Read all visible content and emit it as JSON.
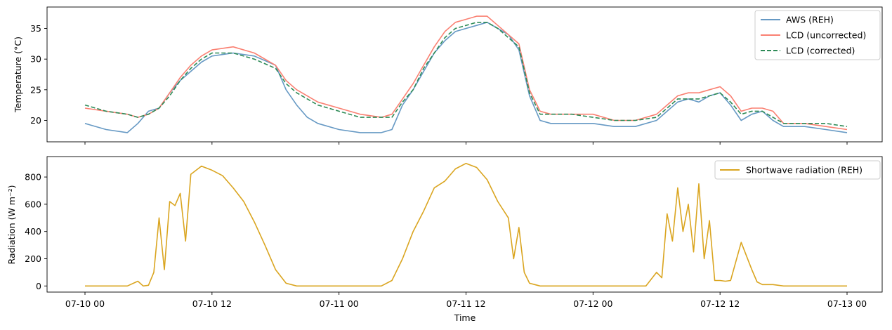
{
  "chart_data": [
    {
      "type": "line",
      "xlabel": "",
      "ylabel": "Temperature (°C)",
      "xlim": [
        "07-10 00",
        "07-13 00"
      ],
      "ylim": [
        16.5,
        38.5
      ],
      "yticks": [
        20,
        25,
        30,
        35
      ],
      "legend": "top-right",
      "series": [
        {
          "name": "AWS (REH)",
          "color": "#6699c4",
          "style": "solid",
          "x": [
            "07-10 00",
            "07-10 02",
            "07-10 04",
            "07-10 05",
            "07-10 06",
            "07-10 07",
            "07-10 08",
            "07-10 09",
            "07-10 10",
            "07-10 11",
            "07-10 12",
            "07-10 14",
            "07-10 16",
            "07-10 18",
            "07-10 19",
            "07-10 20",
            "07-10 21",
            "07-10 22",
            "07-11 00",
            "07-11 02",
            "07-11 04",
            "07-11 05",
            "07-11 06",
            "07-11 07",
            "07-11 08",
            "07-11 09",
            "07-11 10",
            "07-11 11",
            "07-11 12",
            "07-11 13",
            "07-11 14",
            "07-11 15",
            "07-11 16",
            "07-11 17",
            "07-11 18",
            "07-11 19",
            "07-11 20",
            "07-11 22",
            "07-12 00",
            "07-12 02",
            "07-12 04",
            "07-12 06",
            "07-12 07",
            "07-12 08",
            "07-12 09",
            "07-12 10",
            "07-12 11",
            "07-12 12",
            "07-12 13",
            "07-12 14",
            "07-12 15",
            "07-12 16",
            "07-12 17",
            "07-12 18",
            "07-12 20",
            "07-12 22",
            "07-13 00"
          ],
          "y": [
            19.5,
            18.5,
            18.0,
            19.5,
            21.5,
            22.0,
            24.5,
            26.5,
            28.0,
            29.5,
            30.5,
            31.0,
            30.5,
            29.0,
            25.0,
            22.5,
            20.5,
            19.5,
            18.5,
            18.0,
            18.0,
            18.5,
            22.5,
            25.0,
            28.0,
            31.0,
            33.0,
            34.5,
            35.0,
            35.5,
            36.0,
            35.0,
            34.0,
            31.5,
            24.0,
            20.0,
            19.5,
            19.5,
            19.5,
            19.0,
            19.0,
            20.0,
            21.5,
            23.0,
            23.5,
            23.0,
            24.0,
            24.5,
            22.5,
            20.0,
            21.0,
            21.5,
            20.0,
            19.0,
            19.0,
            18.5,
            18.0
          ]
        },
        {
          "name": "LCD (uncorrected)",
          "color": "#fa8072",
          "style": "solid",
          "x": [
            "07-10 00",
            "07-10 02",
            "07-10 04",
            "07-10 05",
            "07-10 06",
            "07-10 07",
            "07-10 08",
            "07-10 09",
            "07-10 10",
            "07-10 11",
            "07-10 12",
            "07-10 14",
            "07-10 16",
            "07-10 18",
            "07-10 19",
            "07-10 20",
            "07-10 22",
            "07-11 00",
            "07-11 02",
            "07-11 04",
            "07-11 05",
            "07-11 06",
            "07-11 07",
            "07-11 08",
            "07-11 09",
            "07-11 10",
            "07-11 11",
            "07-11 12",
            "07-11 13",
            "07-11 14",
            "07-11 15",
            "07-11 16",
            "07-11 17",
            "07-11 18",
            "07-11 19",
            "07-11 20",
            "07-11 22",
            "07-12 00",
            "07-12 02",
            "07-12 04",
            "07-12 06",
            "07-12 07",
            "07-12 08",
            "07-12 09",
            "07-12 10",
            "07-12 11",
            "07-12 12",
            "07-12 13",
            "07-12 14",
            "07-12 15",
            "07-12 16",
            "07-12 17",
            "07-12 18",
            "07-12 20",
            "07-12 22",
            "07-13 00"
          ],
          "y": [
            22.0,
            21.5,
            21.0,
            20.5,
            21.0,
            22.0,
            24.5,
            27.0,
            29.0,
            30.5,
            31.5,
            32.0,
            31.0,
            29.0,
            26.5,
            25.0,
            23.0,
            22.0,
            21.0,
            20.5,
            21.0,
            23.5,
            26.0,
            29.0,
            32.0,
            34.5,
            36.0,
            36.5,
            37.0,
            37.0,
            35.5,
            34.0,
            32.5,
            25.0,
            21.5,
            21.0,
            21.0,
            21.0,
            20.0,
            20.0,
            21.0,
            22.5,
            24.0,
            24.5,
            24.5,
            25.0,
            25.5,
            24.0,
            21.5,
            22.0,
            22.0,
            21.5,
            19.5,
            19.5,
            19.0,
            18.5
          ]
        },
        {
          "name": "LCD (corrected)",
          "color": "#2e8b57",
          "style": "dashed",
          "x": [
            "07-10 00",
            "07-10 02",
            "07-10 04",
            "07-10 05",
            "07-10 06",
            "07-10 07",
            "07-10 08",
            "07-10 09",
            "07-10 10",
            "07-10 11",
            "07-10 12",
            "07-10 14",
            "07-10 16",
            "07-10 18",
            "07-10 19",
            "07-10 20",
            "07-10 22",
            "07-11 00",
            "07-11 02",
            "07-11 04",
            "07-11 05",
            "07-11 06",
            "07-11 07",
            "07-11 08",
            "07-11 09",
            "07-11 10",
            "07-11 11",
            "07-11 12",
            "07-11 13",
            "07-11 14",
            "07-11 15",
            "07-11 16",
            "07-11 17",
            "07-11 18",
            "07-11 19",
            "07-11 20",
            "07-11 22",
            "07-12 00",
            "07-12 02",
            "07-12 04",
            "07-12 06",
            "07-12 07",
            "07-12 08",
            "07-12 09",
            "07-12 10",
            "07-12 11",
            "07-12 12",
            "07-12 13",
            "07-12 14",
            "07-12 15",
            "07-12 16",
            "07-12 17",
            "07-12 18",
            "07-12 20",
            "07-12 22",
            "07-13 00"
          ],
          "y": [
            22.5,
            21.5,
            21.0,
            20.5,
            21.0,
            22.0,
            24.0,
            26.5,
            28.5,
            30.0,
            31.0,
            31.0,
            30.0,
            28.5,
            26.0,
            24.5,
            22.5,
            21.5,
            20.5,
            20.5,
            20.5,
            23.0,
            25.0,
            28.5,
            31.0,
            33.5,
            35.0,
            35.5,
            36.0,
            36.0,
            35.0,
            33.5,
            32.0,
            24.5,
            21.0,
            21.0,
            21.0,
            20.5,
            20.0,
            20.0,
            20.5,
            22.0,
            23.5,
            23.5,
            23.5,
            24.0,
            24.5,
            23.0,
            21.0,
            21.5,
            21.5,
            20.5,
            19.5,
            19.5,
            19.5,
            19.0
          ]
        }
      ]
    },
    {
      "type": "line",
      "xlabel": "Time",
      "ylabel": "Radiation (W m⁻²)",
      "xlim": [
        "07-10 00",
        "07-13 00"
      ],
      "ylim": [
        -45,
        950
      ],
      "yticks": [
        0,
        200,
        400,
        600,
        800
      ],
      "xticks": [
        "07-10 00",
        "07-10 12",
        "07-11 00",
        "07-11 12",
        "07-12 00",
        "07-12 12",
        "07-13 00"
      ],
      "legend": "top-right",
      "series": [
        {
          "name": "Shortwave radiation (REH)",
          "color": "#daa520",
          "style": "solid",
          "x": [
            "07-10 00",
            "07-10 03",
            "07-10 04",
            "07-10 05",
            "07-10 05:30",
            "07-10 06",
            "07-10 06:30",
            "07-10 07",
            "07-10 07:30",
            "07-10 08",
            "07-10 08:30",
            "07-10 09",
            "07-10 09:30",
            "07-10 10",
            "07-10 11",
            "07-10 12",
            "07-10 13",
            "07-10 14",
            "07-10 15",
            "07-10 16",
            "07-10 17",
            "07-10 18",
            "07-10 19",
            "07-10 20",
            "07-10 21",
            "07-11 00",
            "07-11 03",
            "07-11 04",
            "07-11 05",
            "07-11 06",
            "07-11 07",
            "07-11 08",
            "07-11 09",
            "07-11 10",
            "07-11 11",
            "07-11 12",
            "07-11 13",
            "07-11 14",
            "07-11 15",
            "07-11 16",
            "07-11 16:30",
            "07-11 17",
            "07-11 17:30",
            "07-11 18",
            "07-11 19",
            "07-11 20",
            "07-12 00",
            "07-12 03",
            "07-12 04",
            "07-12 05",
            "07-12 06",
            "07-12 06:30",
            "07-12 07",
            "07-12 07:30",
            "07-12 08",
            "07-12 08:30",
            "07-12 09",
            "07-12 09:30",
            "07-12 10",
            "07-12 10:30",
            "07-12 11",
            "07-12 11:30",
            "07-12 12",
            "07-12 12:30",
            "07-12 13",
            "07-12 14",
            "07-12 15",
            "07-12 15:30",
            "07-12 16",
            "07-12 17",
            "07-12 18",
            "07-12 19",
            "07-12 20",
            "07-13 00"
          ],
          "y": [
            0,
            0,
            0,
            35,
            0,
            5,
            100,
            500,
            120,
            620,
            590,
            680,
            330,
            820,
            880,
            850,
            810,
            720,
            620,
            470,
            300,
            120,
            20,
            0,
            0,
            0,
            0,
            0,
            40,
            200,
            400,
            550,
            720,
            770,
            860,
            900,
            870,
            780,
            620,
            500,
            200,
            430,
            100,
            20,
            0,
            0,
            0,
            0,
            0,
            0,
            100,
            60,
            530,
            330,
            720,
            400,
            600,
            250,
            750,
            200,
            480,
            40,
            40,
            35,
            40,
            320,
            120,
            30,
            10,
            10,
            0,
            0,
            0,
            0
          ]
        }
      ]
    }
  ]
}
